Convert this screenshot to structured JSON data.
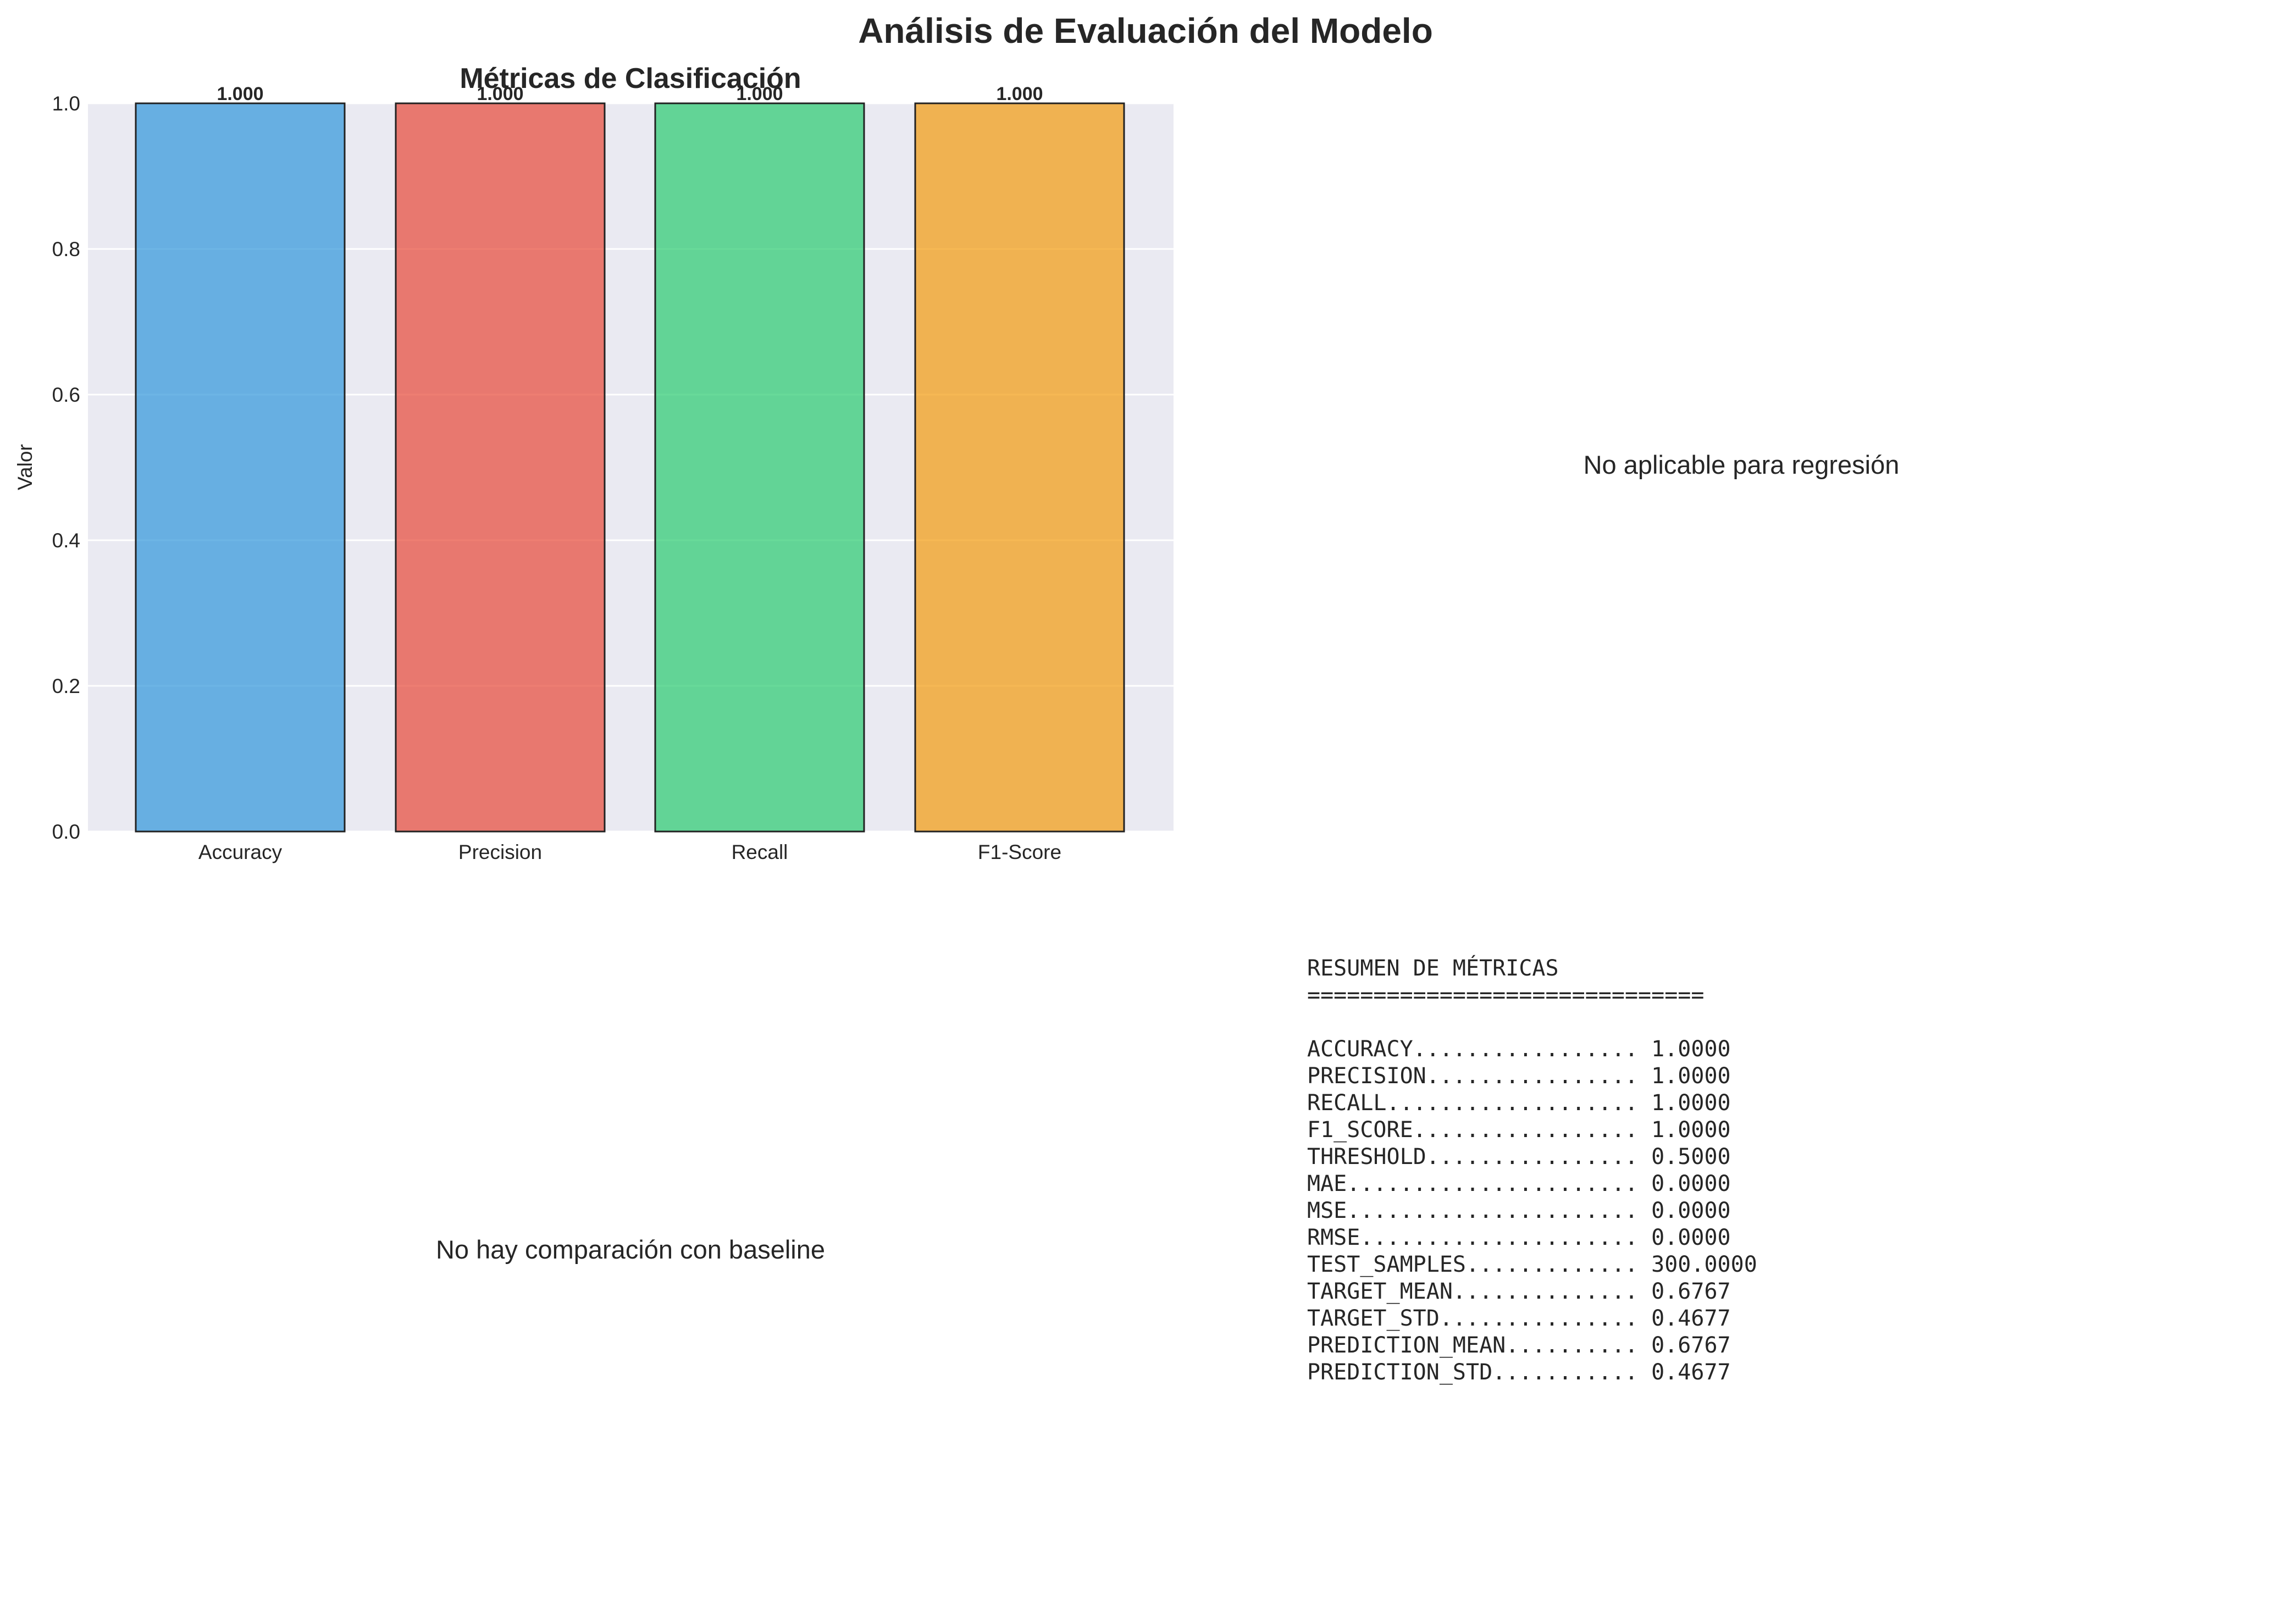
{
  "figure": {
    "title": "Análisis de Evaluación del Modelo"
  },
  "chart_data": [
    {
      "type": "bar",
      "title": "Métricas de Clasificación",
      "xlabel": "",
      "ylabel": "Valor",
      "categories": [
        "Accuracy",
        "Precision",
        "Recall",
        "F1-Score"
      ],
      "values": [
        1.0,
        1.0,
        1.0,
        1.0
      ],
      "value_labels": [
        "1.000",
        "1.000",
        "1.000",
        "1.000"
      ],
      "colors": [
        "#3498db",
        "#e74c3c",
        "#2ecc71",
        "#f39c12"
      ],
      "ylim": [
        0,
        1.0
      ],
      "yticks": [
        "0.0",
        "0.2",
        "0.4",
        "0.6",
        "0.8",
        "1.0"
      ],
      "grid": true,
      "background": "#eaeaf2"
    }
  ],
  "panels": {
    "regression_note": "No aplicable para regresión",
    "baseline_note": "No hay comparación con baseline"
  },
  "summary": {
    "lines": [
      "RESUMEN DE MÉTRICAS",
      "==============================",
      "",
      "ACCURACY................. 1.0000",
      "PRECISION................ 1.0000",
      "RECALL................... 1.0000",
      "F1_SCORE................. 1.0000",
      "THRESHOLD................ 0.5000",
      "MAE...................... 0.0000",
      "MSE...................... 0.0000",
      "RMSE..................... 0.0000",
      "TEST_SAMPLES............. 300.0000",
      "TARGET_MEAN.............. 0.6767",
      "TARGET_STD............... 0.4677",
      "PREDICTION_MEAN.......... 0.6767",
      "PREDICTION_STD........... 0.4677"
    ]
  }
}
